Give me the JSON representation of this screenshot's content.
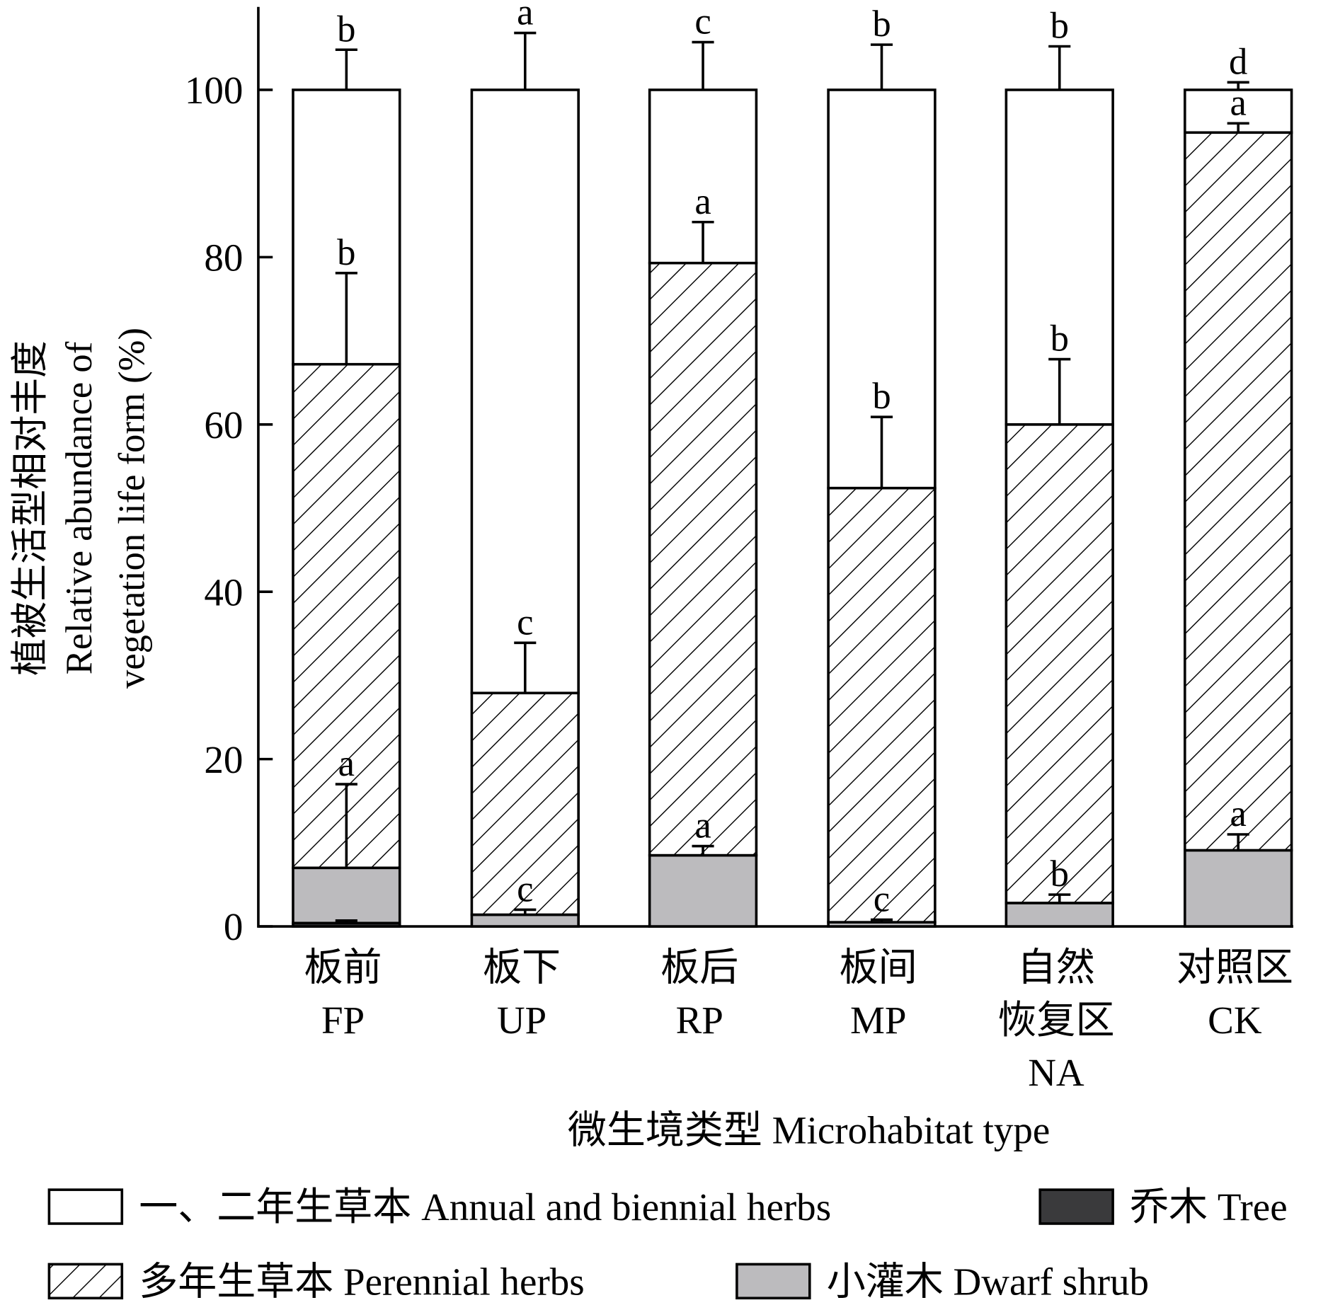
{
  "chart_data": {
    "type": "bar",
    "stacked": true,
    "ylabel_cn": "植被生活型相对丰度",
    "ylabel_en_1": "Relative abundance of",
    "ylabel_en_2": "vegetation life form (%)",
    "xlabel": "微生境类型 Microhabitat type",
    "ylim": [
      0,
      100
    ],
    "yticks": [
      "0",
      "20",
      "40",
      "60",
      "80",
      "100"
    ],
    "categories": [
      {
        "cn": [
          "板前"
        ],
        "en": "FP"
      },
      {
        "cn": [
          "板下"
        ],
        "en": "UP"
      },
      {
        "cn": [
          "板后"
        ],
        "en": "RP"
      },
      {
        "cn": [
          "板间"
        ],
        "en": "MP"
      },
      {
        "cn": [
          "自然",
          "恢复区"
        ],
        "en": "NA"
      },
      {
        "cn": [
          "对照区"
        ],
        "en": "CK"
      }
    ],
    "series": [
      {
        "name": "乔木 Tree",
        "key": "tree",
        "values": [
          0.4,
          0,
          0,
          0,
          0,
          0
        ],
        "errors": [
          0.3,
          0,
          0,
          0,
          0,
          0
        ],
        "letters": [
          "",
          "",
          "",
          "",
          "",
          ""
        ]
      },
      {
        "name": "小灌木 Dwarf shrub",
        "key": "shrub",
        "values": [
          6.6,
          1.4,
          8.5,
          0.5,
          2.8,
          9.1
        ],
        "errors": [
          10.0,
          0.6,
          1.1,
          0.3,
          1.0,
          1.9
        ],
        "letters": [
          "a",
          "c",
          "a",
          "c",
          "b",
          "a"
        ]
      },
      {
        "name": "多年生草本 Perennial herbs",
        "key": "perennial",
        "values": [
          60.2,
          26.5,
          70.8,
          51.9,
          57.2,
          85.8
        ],
        "errors": [
          10.9,
          6.0,
          4.9,
          8.5,
          7.8,
          1.1
        ],
        "letters": [
          "b",
          "c",
          "a",
          "b",
          "b",
          "a"
        ]
      },
      {
        "name": "一、二年生草本 Annual and biennial herbs",
        "key": "annual",
        "values": [
          32.8,
          72.1,
          20.7,
          47.6,
          40.0,
          5.1
        ],
        "errors": [
          4.8,
          6.8,
          5.7,
          5.4,
          5.2,
          0.9
        ],
        "letters": [
          "b",
          "a",
          "c",
          "b",
          "b",
          "d"
        ]
      }
    ],
    "legend": [
      {
        "label": "一、二年生草本 Annual and biennial herbs",
        "key": "annual"
      },
      {
        "label": "乔木 Tree",
        "key": "tree"
      },
      {
        "label": "多年生草本 Perennial herbs",
        "key": "perennial"
      },
      {
        "label": "小灌木 Dwarf shrub",
        "key": "shrub"
      }
    ],
    "colors": {
      "annual": "#ffffff",
      "perennial": "hatch",
      "shrub": "#bcbbbe",
      "tree": "#3a3a3c"
    },
    "legend_position": "bottom"
  }
}
